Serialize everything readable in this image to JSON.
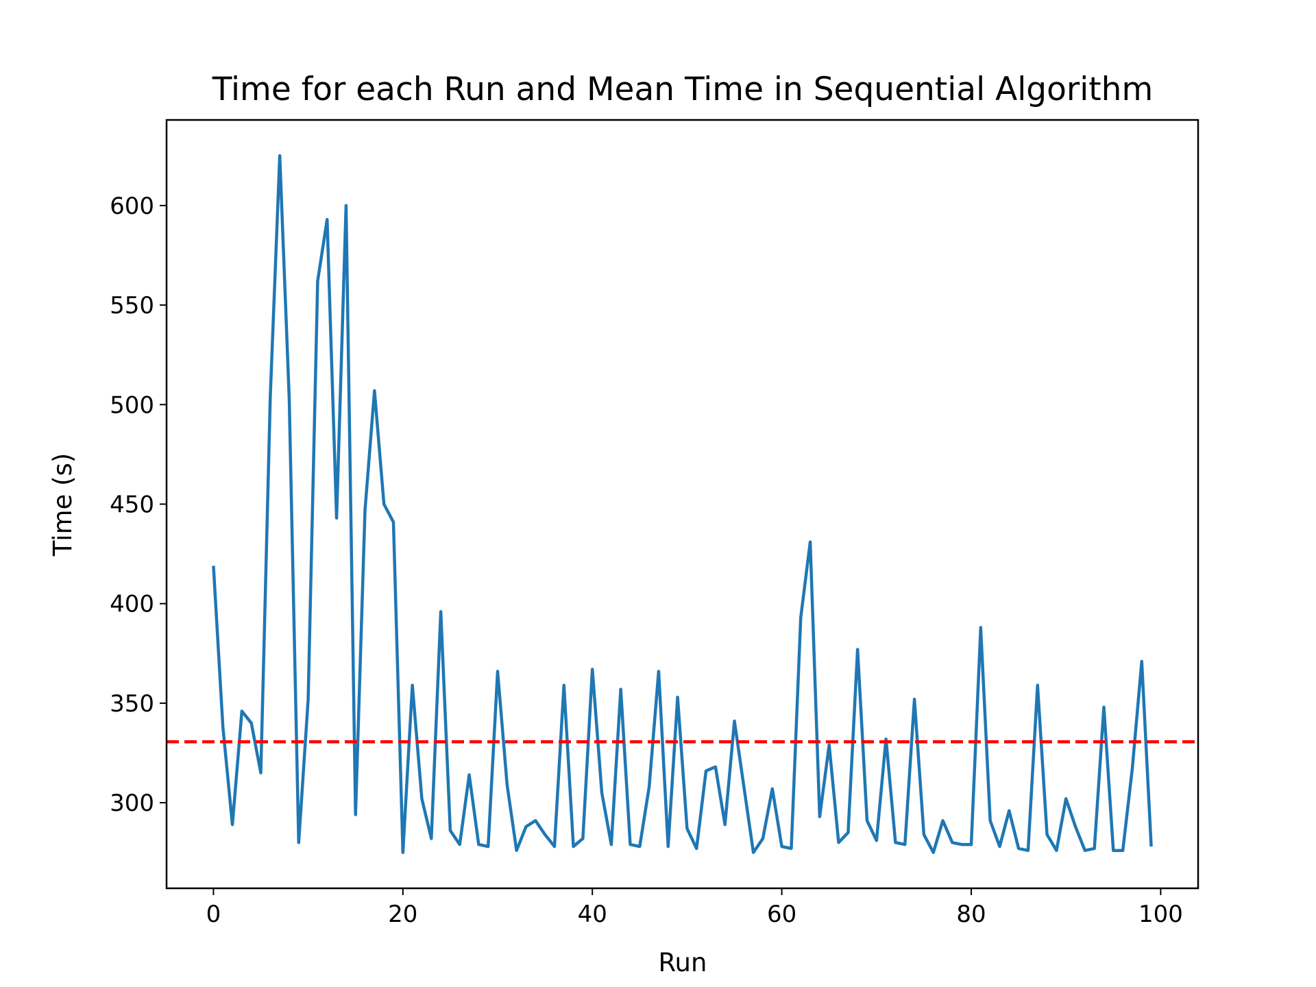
{
  "chart_data": {
    "type": "line",
    "title": "Time for each Run and Mean Time in Sequential Algorithm",
    "xlabel": "Run",
    "ylabel": "Time (s)",
    "xlim": [
      -4.95,
      103.95
    ],
    "ylim": [
      257,
      643
    ],
    "xticks": [
      0,
      20,
      40,
      60,
      80,
      100
    ],
    "yticks": [
      300,
      350,
      400,
      450,
      500,
      550,
      600
    ],
    "grid": false,
    "legend": "none",
    "series": [
      {
        "color": "#1f77b4",
        "style": "solid",
        "x": [
          0,
          1,
          2,
          3,
          4,
          5,
          6,
          7,
          8,
          9,
          10,
          11,
          12,
          13,
          14,
          15,
          16,
          17,
          18,
          19,
          20,
          21,
          22,
          23,
          24,
          25,
          26,
          27,
          28,
          29,
          30,
          31,
          32,
          33,
          34,
          35,
          36,
          37,
          38,
          39,
          40,
          41,
          42,
          43,
          44,
          45,
          46,
          47,
          48,
          49,
          50,
          51,
          52,
          53,
          54,
          55,
          56,
          57,
          58,
          59,
          60,
          61,
          62,
          63,
          64,
          65,
          66,
          67,
          68,
          69,
          70,
          71,
          72,
          73,
          74,
          75,
          76,
          77,
          78,
          79,
          80,
          81,
          82,
          83,
          84,
          85,
          86,
          87,
          88,
          89,
          90,
          91,
          92,
          93,
          94,
          95,
          96,
          97,
          98,
          99
        ],
        "values": [
          419,
          338,
          289,
          346,
          340,
          315,
          504,
          625,
          503,
          280,
          352,
          562,
          593,
          443,
          600,
          294,
          447,
          507,
          450,
          441,
          275,
          359,
          302,
          282,
          396,
          286,
          279,
          314,
          279,
          278,
          366,
          309,
          276,
          288,
          291,
          284,
          278,
          359,
          278,
          282,
          367,
          305,
          279,
          357,
          279,
          278,
          308,
          366,
          278,
          353,
          287,
          277,
          316,
          318,
          289,
          341,
          308,
          275,
          282,
          307,
          278,
          277,
          393,
          431,
          293,
          329,
          280,
          285,
          377,
          291,
          281,
          332,
          280,
          279,
          352,
          284,
          275,
          291,
          280,
          279,
          279,
          388,
          291,
          278,
          296,
          277,
          276,
          359,
          284,
          276,
          302,
          288,
          276,
          277,
          348,
          276,
          276,
          317,
          371,
          278
        ]
      },
      {
        "color": "#ff0000",
        "style": "dashed",
        "x": [
          -4.95,
          103.95
        ],
        "values": [
          330.6,
          330.6
        ]
      }
    ]
  }
}
